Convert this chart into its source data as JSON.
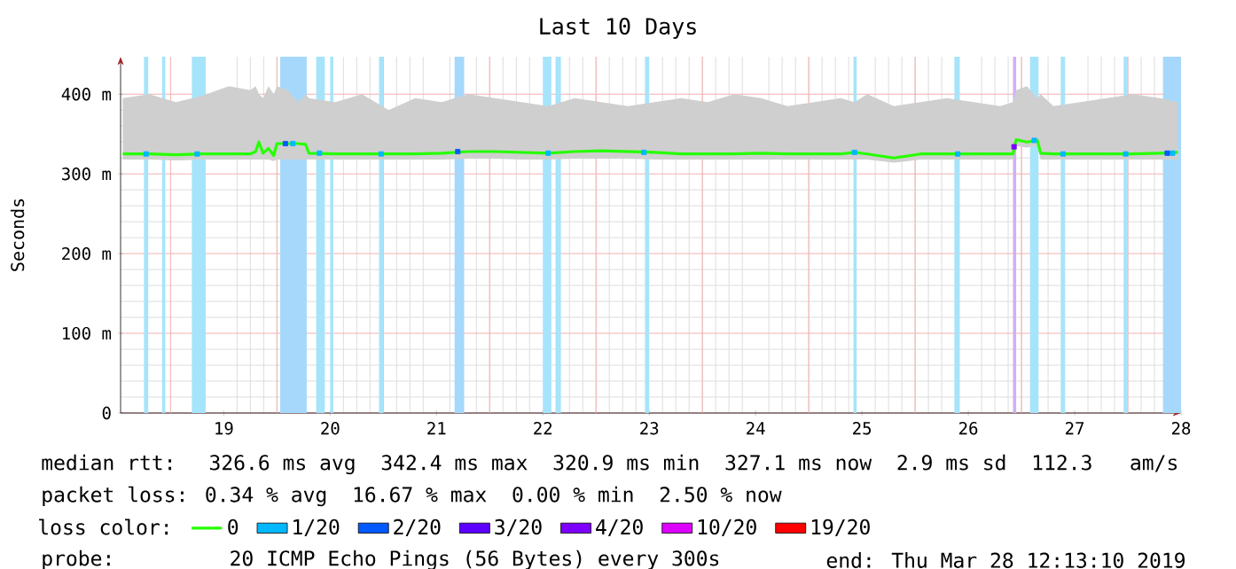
{
  "chart_data": {
    "type": "line",
    "title": "Last 10 Days",
    "ylabel": "Seconds",
    "xlim": [
      18.03,
      28
    ],
    "ylim": [
      0,
      447
    ],
    "xticks": [
      {
        "value": 18.5,
        "label": null
      },
      19,
      {
        "value": 19.5,
        "label": null
      },
      20,
      {
        "value": 20.5,
        "label": null
      },
      21,
      {
        "value": 21.5,
        "label": null
      },
      22,
      {
        "value": 22.5,
        "label": null
      },
      23,
      {
        "value": 23.5,
        "label": null
      },
      24,
      {
        "value": 24.5,
        "label": null
      },
      25,
      {
        "value": 25.5,
        "label": null
      },
      26,
      {
        "value": 26.5,
        "label": null
      },
      27,
      {
        "value": 27.5,
        "label": null
      },
      28
    ],
    "yticks": [
      0,
      {
        "value": 100,
        "label": "100 m"
      },
      {
        "value": 200,
        "label": "200 m"
      },
      {
        "value": 300,
        "label": "300 m"
      },
      {
        "value": 400,
        "label": "400 m"
      }
    ],
    "grid": true,
    "legend": "bottom",
    "legend_title": "loss color:",
    "annotations": [
      "median rtt:  326.6 ms avg  342.4 ms max  320.9 ms min  327.1 ms now  2.9 ms sd  112.3   am/s",
      "packet loss: 0.34 % avg  16.67 % max  0.00 % min  2.50 % now",
      "probe:       20 ICMP Echo Pings (56 Bytes) every 300s",
      "end: Thu Mar 28 12:13:10 2019"
    ],
    "bands": [
      {
        "axis": "x",
        "from": 18.25,
        "to": 18.29,
        "color": "#a6e4fb"
      },
      {
        "axis": "x",
        "from": 18.42,
        "to": 18.45,
        "color": "#a6e4fb"
      },
      {
        "axis": "x",
        "from": 18.7,
        "to": 18.83,
        "color": "#a6e4fb"
      },
      {
        "axis": "x",
        "from": 19.53,
        "to": 19.78,
        "color": "#a6d8fb"
      },
      {
        "axis": "x",
        "from": 19.87,
        "to": 19.95,
        "color": "#a6e4fb"
      },
      {
        "axis": "x",
        "from": 20.0,
        "to": 20.03,
        "color": "#a6e4fb"
      },
      {
        "axis": "x",
        "from": 20.46,
        "to": 20.5,
        "color": "#a6e4fb"
      },
      {
        "axis": "x",
        "from": 21.17,
        "to": 21.26,
        "color": "#a6d8fb"
      },
      {
        "axis": "x",
        "from": 22.0,
        "to": 22.08,
        "color": "#a6e4fb"
      },
      {
        "axis": "x",
        "from": 22.12,
        "to": 22.17,
        "color": "#a6e4fb"
      },
      {
        "axis": "x",
        "from": 22.96,
        "to": 23.0,
        "color": "#a6e4fb"
      },
      {
        "axis": "x",
        "from": 24.92,
        "to": 24.95,
        "color": "#a6e4fb"
      },
      {
        "axis": "x",
        "from": 25.87,
        "to": 25.92,
        "color": "#a6e4fb"
      },
      {
        "axis": "x",
        "from": 26.42,
        "to": 26.45,
        "color": "#d0b0f4"
      },
      {
        "axis": "x",
        "from": 26.58,
        "to": 26.66,
        "color": "#a6e4fb"
      },
      {
        "axis": "x",
        "from": 26.87,
        "to": 26.91,
        "color": "#a6e4fb"
      },
      {
        "axis": "x",
        "from": 27.46,
        "to": 27.5,
        "color": "#a6e4fb"
      },
      {
        "axis": "x",
        "from": 27.83,
        "to": 28.0,
        "color": "#a6d8fb"
      }
    ],
    "series": [
      {
        "name": "0",
        "color": "#26ff00",
        "x": [
          18.05,
          18.3,
          18.55,
          18.8,
          19.05,
          19.25,
          19.3,
          19.33,
          19.37,
          19.42,
          19.47,
          19.5,
          19.6,
          19.7,
          19.77,
          19.8,
          20.05,
          20.3,
          20.55,
          20.8,
          21.05,
          21.3,
          21.55,
          21.8,
          22.05,
          22.3,
          22.55,
          22.8,
          23.05,
          23.3,
          23.55,
          23.8,
          24.05,
          24.3,
          24.55,
          24.8,
          24.93,
          25.05,
          25.3,
          25.55,
          25.8,
          26.05,
          26.3,
          26.42,
          26.45,
          26.55,
          26.65,
          26.68,
          26.8,
          27.05,
          27.3,
          27.55,
          27.8,
          27.97
        ],
        "values": [
          325,
          325,
          324,
          325,
          325,
          325,
          328,
          340,
          326,
          332,
          323,
          338,
          338,
          338,
          337,
          326,
          325,
          325,
          325,
          325,
          326,
          328,
          328,
          327,
          326,
          328,
          329,
          328,
          327,
          325,
          325,
          325,
          326,
          325,
          325,
          325,
          327,
          325,
          320,
          325,
          325,
          325,
          325,
          325,
          343,
          340,
          342,
          326,
          325,
          325,
          325,
          325,
          326,
          327
        ],
        "lower": [
          318,
          318,
          317,
          318,
          318,
          318,
          318,
          318,
          318,
          318,
          316,
          318,
          318,
          318,
          318,
          318,
          318,
          318,
          318,
          318,
          318,
          319,
          319,
          318,
          318,
          319,
          319,
          319,
          318,
          318,
          318,
          318,
          318,
          318,
          318,
          318,
          318,
          318,
          314,
          318,
          318,
          318,
          318,
          318,
          335,
          333,
          335,
          318,
          318,
          318,
          318,
          318,
          318,
          318
        ],
        "upper": [
          395,
          400,
          390,
          398,
          410,
          405,
          410,
          400,
          395,
          410,
          400,
          410,
          405,
          390,
          400,
          395,
          390,
          400,
          380,
          395,
          390,
          400,
          395,
          390,
          385,
          395,
          390,
          385,
          390,
          395,
          390,
          400,
          395,
          385,
          390,
          395,
          390,
          400,
          385,
          390,
          395,
          390,
          385,
          390,
          405,
          410,
          395,
          400,
          385,
          390,
          395,
          400,
          395,
          390
        ]
      },
      {
        "name": "1/20",
        "color": "#00b8ff",
        "type": "scatter",
        "marker": "square",
        "x": [
          18.27,
          18.75,
          19.65,
          19.9,
          20.48,
          21.22,
          22.05,
          22.95,
          24.93,
          25.9,
          26.62,
          26.89,
          27.48,
          27.92
        ],
        "values": [
          325,
          325,
          338,
          326,
          325,
          null,
          326,
          327,
          327,
          325,
          342,
          325,
          325,
          326
        ]
      },
      {
        "name": "2/20",
        "color": "#0059ff",
        "type": "scatter",
        "marker": "square",
        "x": [
          19.58,
          21.2,
          27.87
        ],
        "values": [
          338,
          328,
          326
        ]
      },
      {
        "name": "3/20",
        "color": "#5e00ff",
        "type": "scatter",
        "marker": "square"
      },
      {
        "name": "4/20",
        "color": "#7e00ff",
        "type": "scatter",
        "marker": "square",
        "x": [
          26.43
        ],
        "values": [
          334
        ]
      },
      {
        "name": "10/20",
        "color": "#dd00ff",
        "type": "scatter",
        "marker": "square"
      },
      {
        "name": "19/20",
        "color": "#ff0000",
        "type": "scatter",
        "marker": "square"
      }
    ]
  }
}
